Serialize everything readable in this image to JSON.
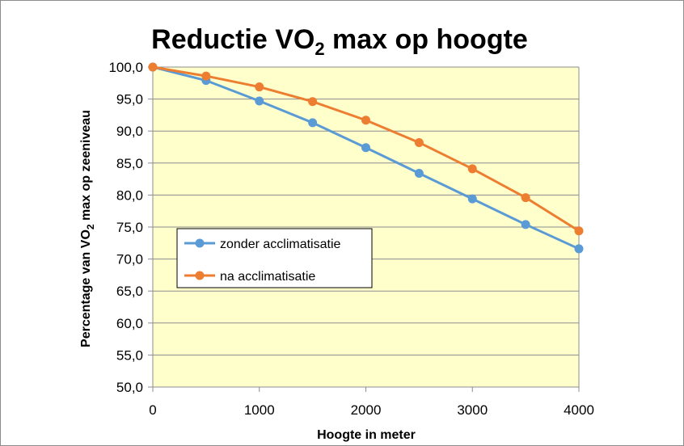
{
  "chart_data": {
    "type": "line",
    "title": "Reductie VO",
    "title_sub": "2",
    "title_rest": " max op hoogte",
    "xlabel": "Hoogte in meter",
    "ylabel": "Percentage van VO",
    "ylabel_sub": "2",
    "ylabel_rest": " max op zeeniveau",
    "x": [
      0,
      500,
      1000,
      1500,
      2000,
      2500,
      3000,
      3500,
      4000
    ],
    "xlim": [
      0,
      4000
    ],
    "ylim": [
      50,
      100
    ],
    "x_ticks": [
      "0",
      "1000",
      "2000",
      "3000",
      "4000"
    ],
    "x_tick_values": [
      0,
      1000,
      2000,
      3000,
      4000
    ],
    "y_ticks": [
      "50,0",
      "55,0",
      "60,0",
      "65,0",
      "70,0",
      "75,0",
      "80,0",
      "85,0",
      "90,0",
      "95,0",
      "100,0"
    ],
    "y_tick_values": [
      50,
      55,
      60,
      65,
      70,
      75,
      80,
      85,
      90,
      95,
      100
    ],
    "grid": true,
    "plot_background": "#ffffcc",
    "legend_placement": "center-left",
    "series": [
      {
        "name": "zonder acclimatisatie",
        "color": "#5b9bd5",
        "values": [
          100.0,
          97.9,
          94.7,
          91.3,
          87.4,
          83.4,
          79.4,
          75.4,
          71.6
        ]
      },
      {
        "name": "na acclimatisatie",
        "color": "#ed7d31",
        "values": [
          100.0,
          98.6,
          96.9,
          94.6,
          91.7,
          88.2,
          84.1,
          79.6,
          74.4
        ]
      }
    ]
  }
}
